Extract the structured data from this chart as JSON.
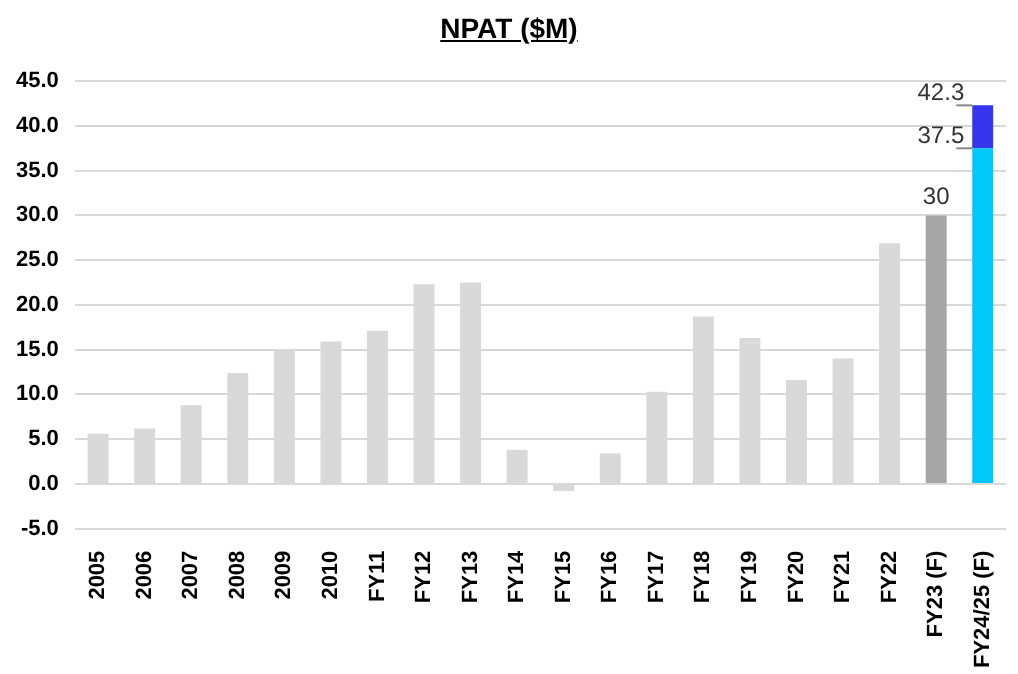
{
  "chart_data": {
    "type": "bar",
    "title": "NPAT ($M)",
    "stacked": true,
    "categories": [
      "2005",
      "2006",
      "2007",
      "2008",
      "2009",
      "2010",
      "FY11",
      "FY12",
      "FY13",
      "FY14",
      "FY15",
      "FY16",
      "FY17",
      "FY18",
      "FY19",
      "FY20",
      "FY21",
      "FY22",
      "FY23 (F)",
      "FY24/25 (F)"
    ],
    "series": [
      {
        "colors": [
          "#d9d9d9",
          "#d9d9d9",
          "#d9d9d9",
          "#d9d9d9",
          "#d9d9d9",
          "#d9d9d9",
          "#d9d9d9",
          "#d9d9d9",
          "#d9d9d9",
          "#d9d9d9",
          "#d9d9d9",
          "#d9d9d9",
          "#d9d9d9",
          "#d9d9d9",
          "#d9d9d9",
          "#d9d9d9",
          "#d9d9d9",
          "#d9d9d9",
          "#a6a6a6",
          "#00c8fa"
        ],
        "values": [
          5.6,
          6.2,
          8.8,
          12.4,
          14.9,
          15.9,
          17.1,
          22.3,
          22.5,
          3.8,
          -0.8,
          3.4,
          10.3,
          18.7,
          16.3,
          11.6,
          14.0,
          26.9,
          30,
          37.5
        ],
        "value_labels": [
          null,
          null,
          null,
          null,
          null,
          null,
          null,
          null,
          null,
          null,
          null,
          null,
          null,
          null,
          null,
          null,
          null,
          null,
          "30",
          "37.5"
        ]
      },
      {
        "color": "#3535ee",
        "values": [
          null,
          null,
          null,
          null,
          null,
          null,
          null,
          null,
          null,
          null,
          null,
          null,
          null,
          null,
          null,
          null,
          null,
          null,
          null,
          4.8
        ]
      }
    ],
    "totals": [
      null,
      null,
      null,
      null,
      null,
      null,
      null,
      null,
      null,
      null,
      null,
      null,
      null,
      null,
      null,
      null,
      null,
      null,
      null,
      "42.3"
    ],
    "ylim": [
      -5,
      45
    ],
    "yticks": [
      {
        "value": -5,
        "label": "-5.0"
      },
      {
        "value": 0,
        "label": "0.0"
      },
      {
        "value": 5,
        "label": "5.0"
      },
      {
        "value": 10,
        "label": "10.0"
      },
      {
        "value": 15,
        "label": "15.0"
      },
      {
        "value": 20,
        "label": "20.0"
      },
      {
        "value": 25,
        "label": "25.0"
      },
      {
        "value": 30,
        "label": "30.0"
      },
      {
        "value": 35,
        "label": "35.0"
      },
      {
        "value": 40,
        "label": "40.0"
      },
      {
        "value": 45,
        "label": "45.0"
      }
    ],
    "grid": "y",
    "legend": false
  }
}
